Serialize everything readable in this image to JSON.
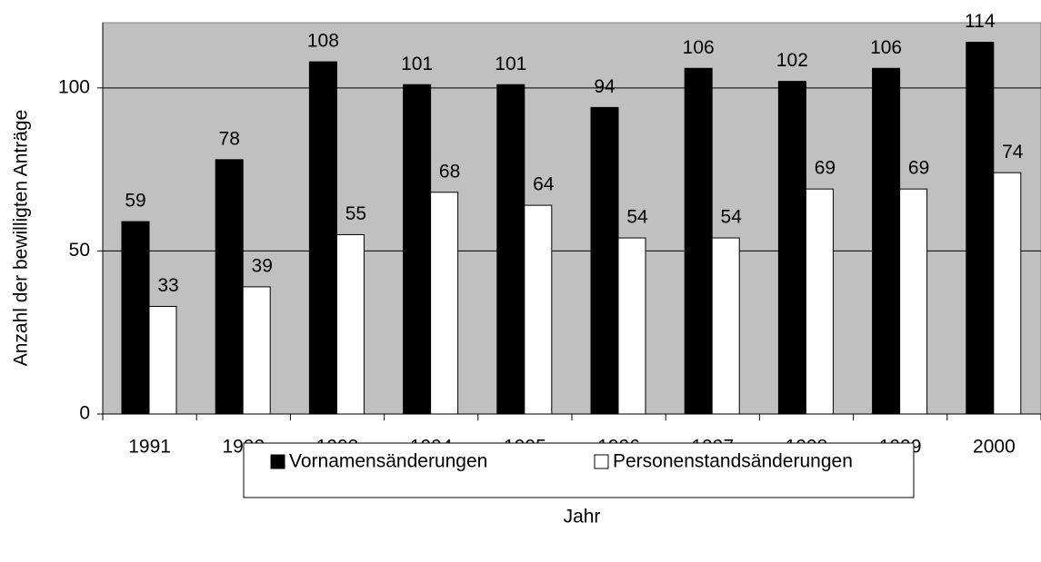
{
  "chart_data": {
    "type": "bar",
    "x_label": "Jahr",
    "y_label": "Anzahl der bewilligten Anträge",
    "categories": [
      "1991",
      "1992",
      "1993",
      "1994",
      "1995",
      "1996",
      "1997",
      "1998",
      "1999",
      "2000"
    ],
    "series": [
      {
        "name": "Vornamensänderungen",
        "color": "#000000",
        "values": [
          59,
          78,
          108,
          101,
          101,
          94,
          106,
          102,
          106,
          114
        ]
      },
      {
        "name": "Personenstandsänderungen",
        "color": "#ffffff",
        "values": [
          33,
          39,
          55,
          68,
          64,
          54,
          54,
          69,
          69,
          74
        ]
      }
    ],
    "ylim": [
      0,
      120
    ],
    "yticks": [
      0,
      50,
      100
    ],
    "grid": true,
    "plot_background": "#c0c0c0",
    "legend": "bottom"
  }
}
